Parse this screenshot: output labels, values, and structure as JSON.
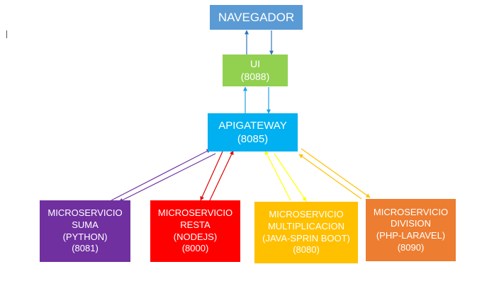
{
  "nodes": {
    "navegador": {
      "lines": [
        "NAVEGADOR"
      ],
      "color": "#5b9bd5"
    },
    "ui": {
      "lines": [
        "UI",
        "(8088)"
      ],
      "color": "#92d050"
    },
    "apigateway": {
      "lines": [
        "APIGATEWAY",
        "(8085)"
      ],
      "color": "#00b0f0"
    },
    "suma": {
      "lines": [
        "MICROSERVICIO",
        "SUMA",
        "(PYTHON)",
        "(8081)"
      ],
      "color": "#7030a0"
    },
    "resta": {
      "lines": [
        "MICROSERVICIO",
        "RESTA",
        "(NODEJS)",
        "(8000)"
      ],
      "color": "#ff0000"
    },
    "multiplicacion": {
      "lines": [
        "MICROSERVICIO",
        "MULTIPLICACION",
        "(JAVA-SPRIN BOOT)",
        "(8080)"
      ],
      "color": "#ffc000"
    },
    "division": {
      "lines": [
        "MICROSERVICIO",
        "DIVISION",
        "(PHP-LARAVEL)",
        "(8090)"
      ],
      "color": "#ed7d31"
    }
  },
  "arrow_colors": {
    "navegador_ui": "#2e75b6",
    "ui_api": "#1ea0e6",
    "suma": "#7030a0",
    "resta": "#e00000",
    "multiplicacion": "#ffff00",
    "division": "#ffc000"
  }
}
